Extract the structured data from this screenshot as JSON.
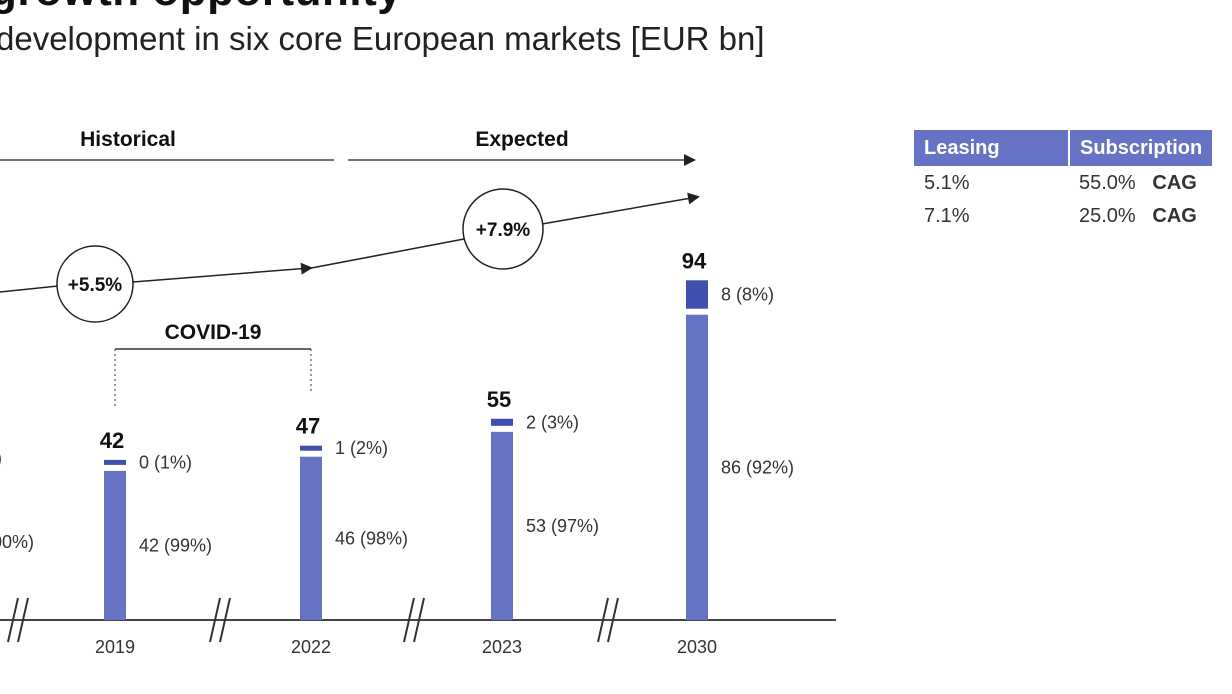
{
  "header": {
    "title_fragment": "growth opportunity",
    "subtitle": "development in six core European markets [EUR bn]"
  },
  "legend_table": {
    "headers": [
      "Leasing",
      "Subscription"
    ],
    "rows": [
      {
        "leasing": "5.1%",
        "subscription": "55.0%",
        "tag": "CAG"
      },
      {
        "leasing": "7.1%",
        "subscription": "25.0%",
        "tag": "CAG"
      }
    ]
  },
  "chart_data": {
    "type": "bar",
    "title": "development in six core European markets [EUR bn]",
    "units": "EUR bn",
    "categories": [
      "2019",
      "2022",
      "2023",
      "2030"
    ],
    "series": [
      {
        "name": "Leasing",
        "values": [
          42,
          46,
          53,
          86
        ],
        "labels": [
          "42 (99%)",
          "46 (98%)",
          "53 (97%)",
          "86 (92%)"
        ]
      },
      {
        "name": "Subscription",
        "values": [
          0,
          1,
          2,
          8
        ],
        "labels": [
          "0 (1%)",
          "1 (2%)",
          "2 (3%)",
          "8 (8%)"
        ]
      }
    ],
    "totals": [
      42,
      47,
      55,
      94
    ],
    "partial_left_labels": [
      ")",
      "00%)"
    ],
    "periods": [
      {
        "label": "Historical"
      },
      {
        "label": "Expected"
      }
    ],
    "cagr_bubbles": [
      "+5.5%",
      "+7.9%"
    ],
    "annotation": "COVID-19",
    "colors": {
      "leasing": "#6672c4",
      "subscription": "#3f4fae",
      "axis": "#444444"
    }
  }
}
